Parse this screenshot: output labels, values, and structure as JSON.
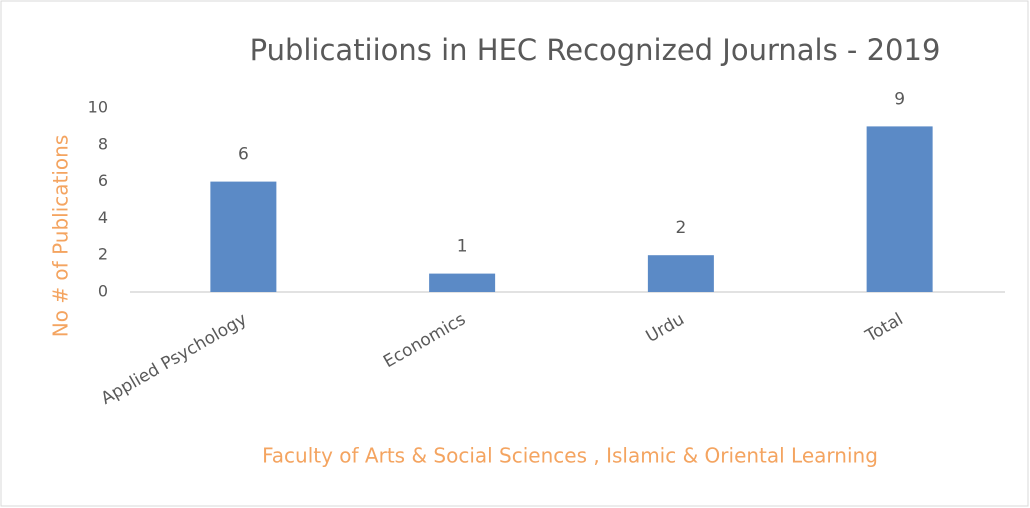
{
  "chart_data": {
    "type": "bar",
    "title": "Publicatiions in HEC Recognized Journals - 2019",
    "x_label": "Faculty of Arts & Social Sciences , Islamic & Oriental Learning",
    "y_label": "No # of Publications",
    "categories": [
      "Applied Psychology",
      "Economics",
      "Urdu",
      "Total"
    ],
    "values": [
      6,
      1,
      2,
      9
    ],
    "color": "#5b8ac6",
    "ylim": [
      0,
      10
    ],
    "yticks": [
      0,
      2,
      4,
      6,
      8,
      10
    ],
    "grid": false
  }
}
